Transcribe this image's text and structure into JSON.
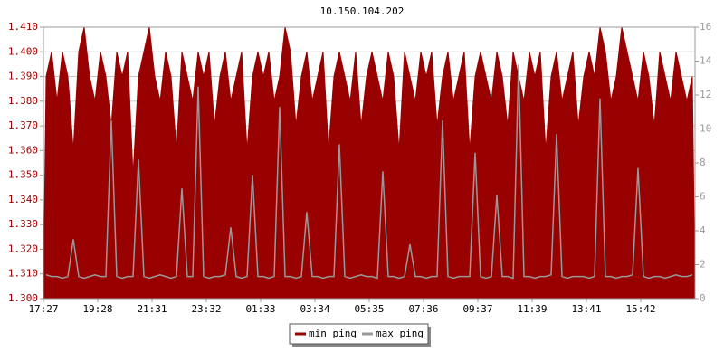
{
  "chart_data": {
    "type": "area",
    "title": "10.150.104.202",
    "categories": [
      "17:27",
      null,
      null,
      null,
      null,
      null,
      null,
      null,
      null,
      null,
      "19:28",
      null,
      null,
      null,
      null,
      null,
      null,
      null,
      null,
      null,
      "21:31",
      null,
      null,
      null,
      null,
      null,
      null,
      null,
      null,
      null,
      "23:32",
      null,
      null,
      null,
      null,
      null,
      null,
      null,
      null,
      null,
      "01:33",
      null,
      null,
      null,
      null,
      null,
      null,
      null,
      null,
      null,
      "03:34",
      null,
      null,
      null,
      null,
      null,
      null,
      null,
      null,
      null,
      "05:35",
      null,
      null,
      null,
      null,
      null,
      null,
      null,
      null,
      null,
      "07:36",
      null,
      null,
      null,
      null,
      null,
      null,
      null,
      null,
      null,
      "09:37",
      null,
      null,
      null,
      null,
      null,
      null,
      null,
      null,
      null,
      "11:39",
      null,
      null,
      null,
      null,
      null,
      null,
      null,
      null,
      null,
      "13:41",
      null,
      null,
      null,
      null,
      null,
      null,
      null,
      null,
      null,
      "15:42",
      null,
      null,
      null,
      null,
      null,
      null,
      null,
      null,
      null
    ],
    "series": [
      {
        "name": "min ping",
        "color": "#990000",
        "axis": "y",
        "values": [
          1.39,
          1.4,
          1.38,
          1.4,
          1.39,
          1.36,
          1.4,
          1.41,
          1.39,
          1.38,
          1.4,
          1.39,
          1.37,
          1.4,
          1.39,
          1.4,
          1.35,
          1.39,
          1.4,
          1.41,
          1.39,
          1.38,
          1.4,
          1.39,
          1.36,
          1.4,
          1.39,
          1.38,
          1.4,
          1.39,
          1.4,
          1.37,
          1.39,
          1.4,
          1.38,
          1.39,
          1.4,
          1.36,
          1.39,
          1.4,
          1.39,
          1.4,
          1.38,
          1.39,
          1.41,
          1.4,
          1.37,
          1.39,
          1.4,
          1.38,
          1.39,
          1.4,
          1.36,
          1.39,
          1.4,
          1.39,
          1.38,
          1.4,
          1.37,
          1.39,
          1.4,
          1.39,
          1.38,
          1.4,
          1.39,
          1.36,
          1.4,
          1.39,
          1.38,
          1.4,
          1.39,
          1.4,
          1.37,
          1.39,
          1.4,
          1.38,
          1.39,
          1.4,
          1.36,
          1.39,
          1.4,
          1.39,
          1.38,
          1.4,
          1.39,
          1.37,
          1.4,
          1.39,
          1.38,
          1.4,
          1.39,
          1.4,
          1.36,
          1.39,
          1.4,
          1.38,
          1.39,
          1.4,
          1.37,
          1.39,
          1.4,
          1.39,
          1.41,
          1.4,
          1.38,
          1.39,
          1.41,
          1.4,
          1.39,
          1.38,
          1.4,
          1.39,
          1.37,
          1.4,
          1.39,
          1.38,
          1.4,
          1.39,
          1.38,
          1.39
        ]
      },
      {
        "name": "max ping",
        "color": "#999999",
        "axis": "y2",
        "values": [
          1.4,
          1.3,
          1.3,
          1.2,
          1.3,
          3.5,
          1.3,
          1.2,
          1.3,
          1.4,
          1.3,
          1.3,
          10.5,
          1.3,
          1.2,
          1.3,
          1.3,
          8.2,
          1.3,
          1.2,
          1.3,
          1.4,
          1.3,
          1.2,
          1.3,
          6.5,
          1.3,
          1.3,
          12.5,
          1.3,
          1.2,
          1.3,
          1.3,
          1.4,
          4.2,
          1.3,
          1.2,
          1.3,
          7.3,
          1.3,
          1.3,
          1.2,
          1.3,
          11.3,
          1.3,
          1.3,
          1.2,
          1.3,
          5.1,
          1.3,
          1.3,
          1.2,
          1.3,
          1.3,
          9.1,
          1.3,
          1.2,
          1.3,
          1.4,
          1.3,
          1.3,
          1.2,
          7.5,
          1.3,
          1.3,
          1.2,
          1.3,
          3.2,
          1.3,
          1.3,
          1.2,
          1.3,
          1.3,
          10.5,
          1.3,
          1.2,
          1.3,
          1.3,
          1.3,
          8.6,
          1.3,
          1.2,
          1.3,
          6.1,
          1.3,
          1.3,
          1.2,
          13.8,
          1.3,
          1.3,
          1.2,
          1.3,
          1.3,
          1.4,
          9.7,
          1.3,
          1.2,
          1.3,
          1.3,
          1.3,
          1.2,
          1.3,
          11.8,
          1.3,
          1.3,
          1.2,
          1.3,
          1.3,
          1.4,
          7.7,
          1.3,
          1.2,
          1.3,
          1.3,
          1.2,
          1.3,
          1.4,
          1.3,
          1.3,
          1.4
        ]
      }
    ],
    "ylim": [
      1.3,
      1.41
    ],
    "yticks": [
      {
        "value": 1.3,
        "label": "1.300"
      },
      {
        "value": 1.31,
        "label": "1.310"
      },
      {
        "value": 1.32,
        "label": "1.320"
      },
      {
        "value": 1.33,
        "label": "1.330"
      },
      {
        "value": 1.34,
        "label": "1.340"
      },
      {
        "value": 1.35,
        "label": "1.350"
      },
      {
        "value": 1.36,
        "label": "1.360"
      },
      {
        "value": 1.37,
        "label": "1.370"
      },
      {
        "value": 1.38,
        "label": "1.380"
      },
      {
        "value": 1.39,
        "label": "1.390"
      },
      {
        "value": 1.4,
        "label": "1.400"
      },
      {
        "value": 1.41,
        "label": "1.410"
      }
    ],
    "y2lim": [
      0,
      16
    ],
    "y2ticks": [
      0,
      2,
      4,
      6,
      8,
      10,
      12,
      14,
      16
    ],
    "grid": true,
    "legend": "bottom"
  }
}
